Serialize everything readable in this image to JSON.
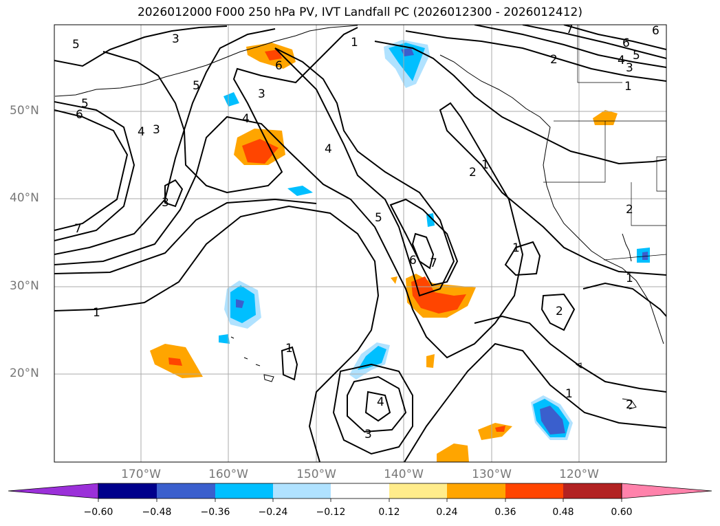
{
  "title": "2026012000 F000 250 hPa PV, IVT Landfall PC (2026012300 - 2026012412)",
  "lat_labels": [
    "50°N",
    "40°N",
    "30°N",
    "20°N"
  ],
  "lon_labels": [
    "170°W",
    "160°W",
    "150°W",
    "140°W",
    "130°W",
    "120°W"
  ],
  "colorbar": {
    "ticks": [
      "−0.60",
      "−0.48",
      "−0.36",
      "−0.24",
      "−0.12",
      "0.12",
      "0.24",
      "0.36",
      "0.48",
      "0.60"
    ],
    "colors": [
      "#9b30d9",
      "#00008b",
      "#3a5fcd",
      "#00bfff",
      "#b0e2ff",
      "#ffffff",
      "#ffec8b",
      "#ffa500",
      "#ff4500",
      "#b22222",
      "#ff82ab"
    ]
  },
  "contour_labels": [
    "1",
    "1",
    "1",
    "1",
    "1",
    "1",
    "1",
    "1",
    "2",
    "2",
    "2",
    "2",
    "2",
    "3",
    "3",
    "3",
    "3",
    "3",
    "3",
    "4",
    "4",
    "4",
    "4",
    "4",
    "5",
    "5",
    "5",
    "5",
    "5",
    "6",
    "6",
    "6",
    "6",
    "6",
    "7",
    "7",
    "7"
  ]
}
